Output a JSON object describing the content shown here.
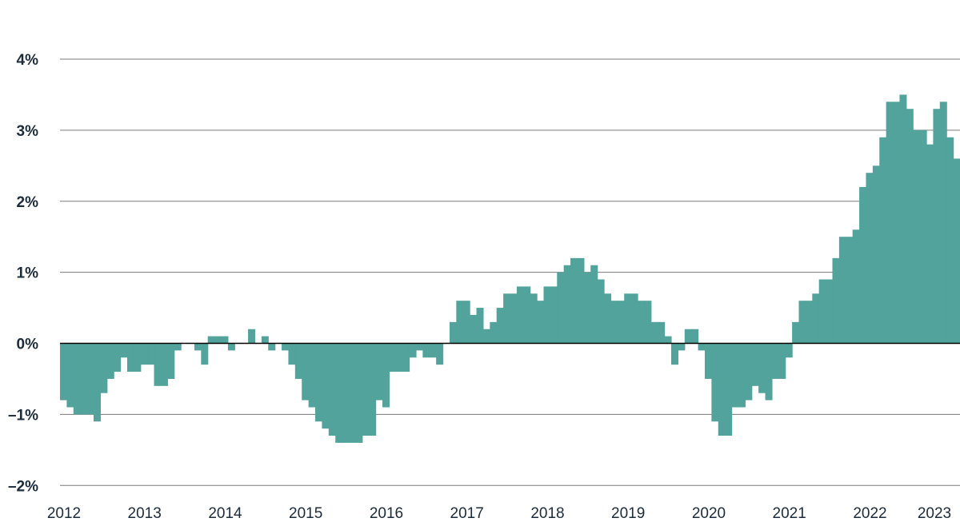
{
  "chart_data": {
    "type": "bar",
    "title": "",
    "xlabel": "",
    "ylabel": "",
    "frequency": "monthly",
    "start": "2012-01",
    "ylim": [
      -2,
      4
    ],
    "grid": true,
    "legend": "none",
    "y_ticks": [
      -2,
      -1,
      0,
      1,
      2,
      3,
      4
    ],
    "y_tick_labels": [
      "–2%",
      "–1%",
      "0%",
      "1%",
      "2%",
      "3%",
      "4%"
    ],
    "x_tick_labels": [
      "2012",
      "2013",
      "2014",
      "2015",
      "2016",
      "2017",
      "2018",
      "2019",
      "2020",
      "2021",
      "2022",
      "2023"
    ],
    "color": "#52a39b",
    "values": [
      -0.8,
      -0.9,
      -1.0,
      -1.0,
      -1.0,
      -1.1,
      -0.7,
      -0.5,
      -0.4,
      -0.2,
      -0.4,
      -0.4,
      -0.3,
      -0.3,
      -0.6,
      -0.6,
      -0.5,
      -0.1,
      0.0,
      0.0,
      -0.1,
      -0.3,
      0.1,
      0.1,
      0.1,
      -0.1,
      0.0,
      0.0,
      0.2,
      0.0,
      0.1,
      -0.1,
      0.0,
      -0.1,
      -0.3,
      -0.5,
      -0.8,
      -0.9,
      -1.1,
      -1.2,
      -1.3,
      -1.4,
      -1.4,
      -1.4,
      -1.4,
      -1.3,
      -1.3,
      -0.8,
      -0.9,
      -0.4,
      -0.4,
      -0.4,
      -0.2,
      -0.1,
      -0.2,
      -0.2,
      -0.3,
      0.0,
      0.3,
      0.6,
      0.6,
      0.4,
      0.5,
      0.2,
      0.3,
      0.5,
      0.7,
      0.7,
      0.8,
      0.8,
      0.7,
      0.6,
      0.8,
      0.8,
      1.0,
      1.1,
      1.2,
      1.2,
      1.0,
      1.1,
      0.9,
      0.7,
      0.6,
      0.6,
      0.7,
      0.7,
      0.6,
      0.6,
      0.3,
      0.3,
      0.1,
      -0.3,
      -0.1,
      0.2,
      0.2,
      -0.1,
      -0.5,
      -1.1,
      -1.3,
      -1.3,
      -0.9,
      -0.9,
      -0.8,
      -0.6,
      -0.7,
      -0.8,
      -0.5,
      -0.5,
      -0.2,
      0.3,
      0.6,
      0.6,
      0.7,
      0.9,
      0.9,
      1.2,
      1.5,
      1.5,
      1.6,
      2.2,
      2.4,
      2.5,
      2.9,
      3.4,
      3.4,
      3.5,
      3.3,
      3.0,
      3.0,
      2.8,
      3.3,
      3.4,
      2.9,
      2.6
    ]
  }
}
